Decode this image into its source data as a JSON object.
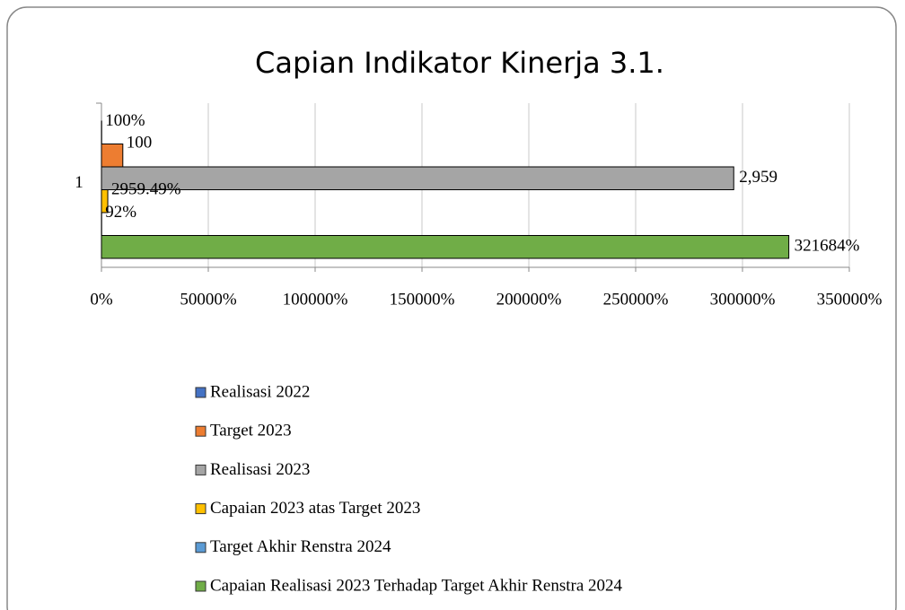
{
  "chart_data": {
    "type": "barh",
    "title": "Capian Indikator Kinerja 3.1.",
    "categories": [
      "1"
    ],
    "series": [
      {
        "name": "Realisasi 2022",
        "color": "#4472c4",
        "values": [
          100
        ],
        "value_labels": [
          "100%"
        ]
      },
      {
        "name": "Target 2023",
        "color": "#ed7d31",
        "values": [
          10000
        ],
        "value_labels": [
          "100"
        ]
      },
      {
        "name": "Realisasi 2023",
        "color": "#a5a5a5",
        "values": [
          295900
        ],
        "value_labels": [
          "2,959"
        ]
      },
      {
        "name": "Capaian 2023 atas Target 2023",
        "color": "#ffc000",
        "values": [
          2959.49
        ],
        "value_labels": [
          "2959.49%"
        ]
      },
      {
        "name": "Target Akhir Renstra 2024",
        "color": "#5b9bd5",
        "values": [
          92
        ],
        "value_labels": [
          "92%"
        ]
      },
      {
        "name": "Capaian Realisasi 2023 Terhadap Target Akhir Renstra 2024",
        "color": "#70ad47",
        "values": [
          321684
        ],
        "value_labels": [
          "321684%"
        ]
      }
    ],
    "xlim": [
      0,
      350000
    ],
    "xticks": [
      {
        "value": 0,
        "label": "0%"
      },
      {
        "value": 50000,
        "label": "50000%"
      },
      {
        "value": 100000,
        "label": "100000%"
      },
      {
        "value": 150000,
        "label": "150000%"
      },
      {
        "value": 200000,
        "label": "200000%"
      },
      {
        "value": 250000,
        "label": "250000%"
      },
      {
        "value": 300000,
        "label": "300000%"
      },
      {
        "value": 350000,
        "label": "350000%"
      }
    ],
    "grid": true,
    "legend": "bottom"
  }
}
